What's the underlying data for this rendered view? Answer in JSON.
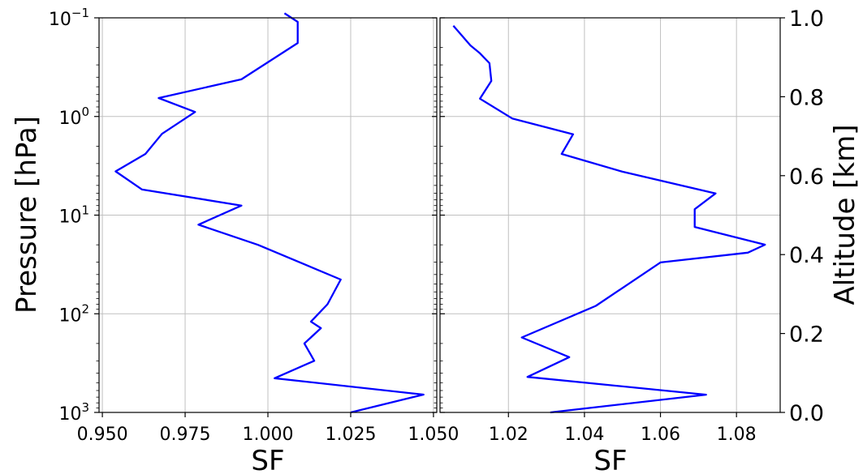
{
  "chart_data": [
    {
      "type": "line",
      "xlabel": "SF",
      "ylabel": "Pressure [hPa]",
      "yscale": "log",
      "yinvert": true,
      "xlim": [
        0.949,
        1.051
      ],
      "ylim": [
        1000,
        0.1
      ],
      "xticks": [
        0.95,
        0.975,
        1.0,
        1.025,
        1.05
      ],
      "xtick_labels": [
        "0.950",
        "0.975",
        "1.000",
        "1.025",
        "1.050"
      ],
      "yticks": [
        1000,
        100,
        10,
        1,
        0.1
      ],
      "ytick_labels": [
        {
          "base": "10",
          "exp": "3"
        },
        {
          "base": "10",
          "exp": "2"
        },
        {
          "base": "10",
          "exp": "1"
        },
        {
          "base": "10",
          "exp": "0"
        },
        {
          "base": "10",
          "exp": "−1"
        }
      ],
      "grid": true,
      "color": "#0000ff",
      "series": [
        {
          "x": [
            1.025,
            1.047,
            1.002,
            1.014,
            1.011,
            1.016,
            1.013,
            1.018,
            1.022,
            0.997,
            0.979,
            0.992,
            0.962,
            0.954,
            0.963,
            0.968,
            0.978,
            0.967,
            0.992,
            1.009,
            1.009,
            1.005
          ],
          "y": [
            1000,
            660,
            450,
            300,
            200,
            140,
            120,
            80,
            45,
            20,
            12.5,
            8,
            5.5,
            3.6,
            2.4,
            1.5,
            0.9,
            0.65,
            0.42,
            0.18,
            0.11,
            0.09
          ]
        }
      ]
    },
    {
      "type": "line",
      "xlabel": "SF",
      "ylabel": "Altitude [km]",
      "xlim": [
        1.002,
        1.0915
      ],
      "ylim": [
        0,
        1.0
      ],
      "xticks": [
        1.02,
        1.04,
        1.06,
        1.08
      ],
      "xtick_labels": [
        "1.02",
        "1.04",
        "1.06",
        "1.08"
      ],
      "yticks": [
        0.0,
        0.2,
        0.4,
        0.6,
        0.8,
        1.0
      ],
      "ytick_labels": [
        "0.0",
        "0.2",
        "0.4",
        "0.6",
        "0.8",
        "1.0"
      ],
      "grid": true,
      "color": "#0000ff",
      "series": [
        {
          "x": [
            1.031,
            1.072,
            1.025,
            1.036,
            1.0235,
            1.043,
            1.06,
            1.083,
            1.0875,
            1.069,
            1.069,
            1.0745,
            1.05,
            1.034,
            1.037,
            1.021,
            1.0125,
            1.0155,
            1.015,
            1.0125,
            1.01,
            1.0055
          ],
          "y": [
            0.0,
            0.045,
            0.09,
            0.14,
            0.19,
            0.27,
            0.38,
            0.405,
            0.425,
            0.47,
            0.515,
            0.555,
            0.61,
            0.655,
            0.705,
            0.745,
            0.795,
            0.84,
            0.885,
            0.91,
            0.93,
            0.98
          ]
        }
      ]
    }
  ]
}
